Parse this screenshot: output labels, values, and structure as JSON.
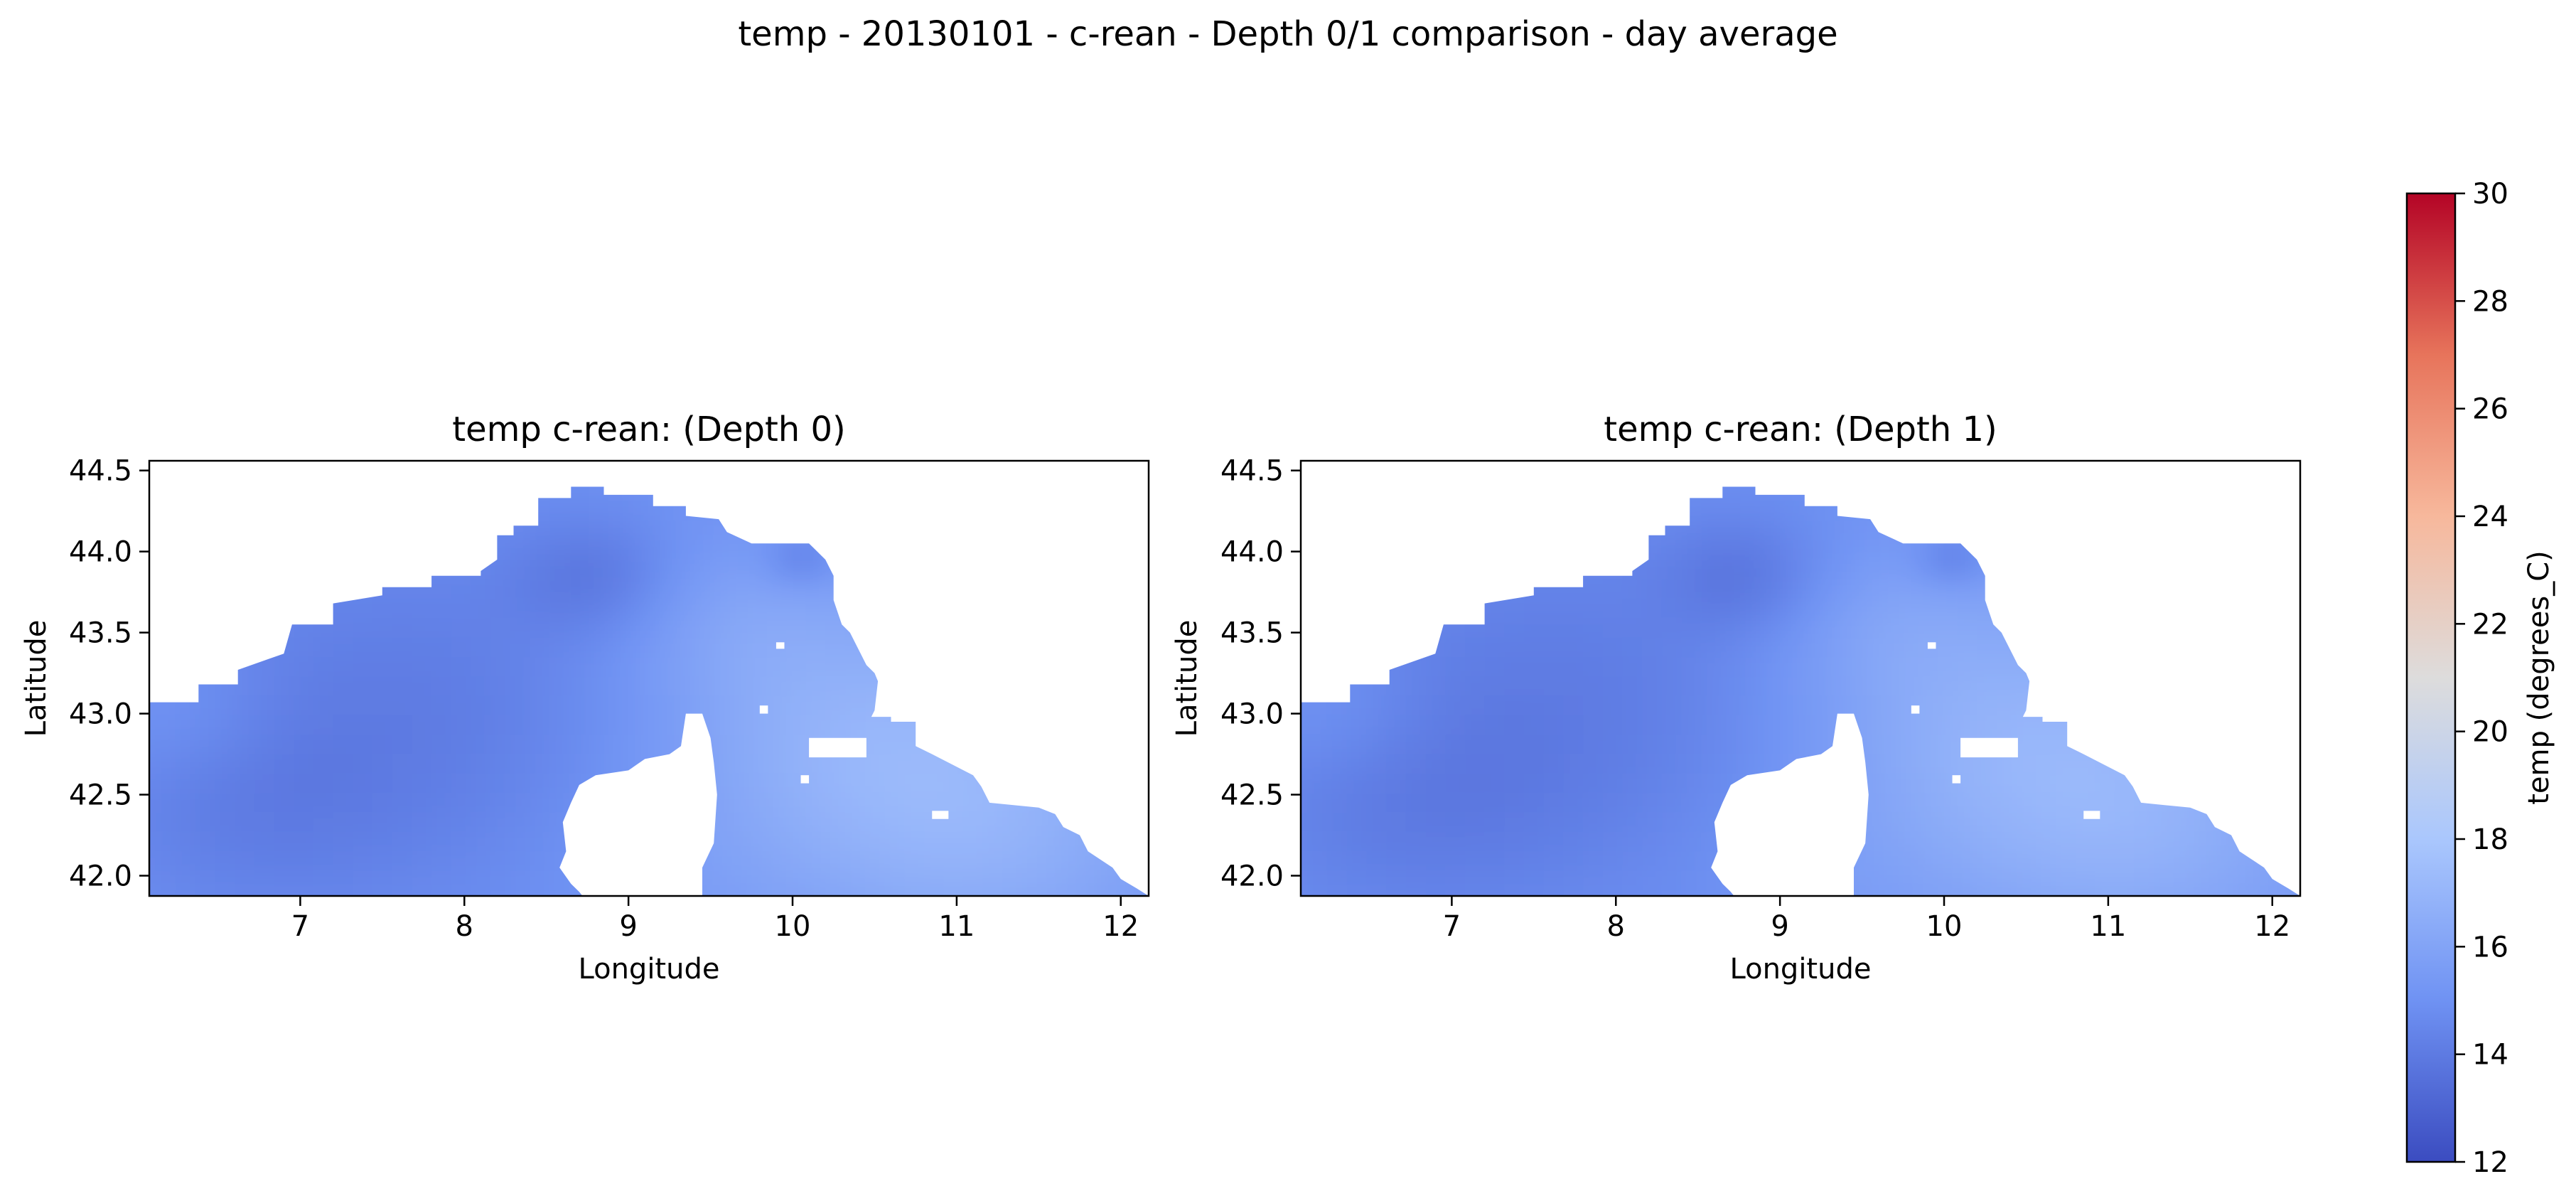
{
  "figure": {
    "suptitle": "temp - 20130101 - c-rean - Depth 0/1 comparison - day average"
  },
  "chart_data": [
    {
      "type": "heatmap",
      "title": "temp c-rean: (Depth 0)",
      "xlabel": "Longitude",
      "ylabel": "Latitude",
      "xlim": [
        6.08,
        12.17
      ],
      "ylim": [
        41.875,
        44.56
      ],
      "xticks": [
        7,
        8,
        9,
        10,
        11,
        12
      ],
      "yticks": [
        42.0,
        42.5,
        43.0,
        43.5,
        44.0,
        44.5
      ],
      "xtick_labels": [
        "7",
        "8",
        "9",
        "10",
        "11",
        "12"
      ],
      "ytick_labels": [
        "42.0",
        "42.5",
        "43.0",
        "43.5",
        "44.0",
        "44.5"
      ],
      "grid": false,
      "value_range": [
        13.2,
        16.8
      ],
      "land_color": "#ffffff"
    },
    {
      "type": "heatmap",
      "title": "temp c-rean: (Depth 1)",
      "xlabel": "Longitude",
      "ylabel": "Latitude",
      "xlim": [
        6.08,
        12.17
      ],
      "ylim": [
        41.875,
        44.56
      ],
      "xticks": [
        7,
        8,
        9,
        10,
        11,
        12
      ],
      "yticks": [
        42.0,
        42.5,
        43.0,
        43.5,
        44.0,
        44.5
      ],
      "xtick_labels": [
        "7",
        "8",
        "9",
        "10",
        "11",
        "12"
      ],
      "ytick_labels": [
        "42.0",
        "42.5",
        "43.0",
        "43.5",
        "44.0",
        "44.5"
      ],
      "grid": false,
      "value_range": [
        13.2,
        16.8
      ],
      "land_color": "#ffffff"
    }
  ],
  "colorbar": {
    "label": "temp (degrees_C)",
    "min": 12,
    "max": 30,
    "ticks": [
      12,
      14,
      16,
      18,
      20,
      22,
      24,
      26,
      28,
      30
    ],
    "tick_labels": [
      "12",
      "14",
      "16",
      "18",
      "20",
      "22",
      "24",
      "26",
      "28",
      "30"
    ],
    "colormap": "coolwarm",
    "stops": [
      "#3b4cc0",
      "#6f92f3",
      "#aac7fd",
      "#dddcdc",
      "#f7b89c",
      "#e7745b",
      "#b40426"
    ]
  }
}
